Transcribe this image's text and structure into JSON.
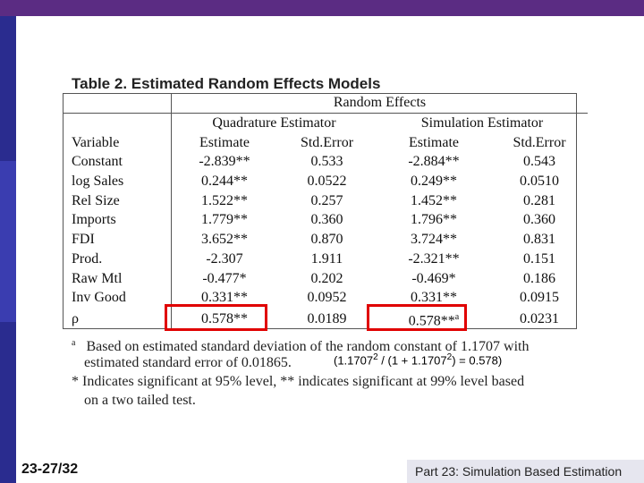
{
  "title": "Table 2.  Estimated Random Effects Models",
  "header": {
    "top": "Random Effects",
    "group1": "Quadrature Estimator",
    "group2": "Simulation Estimator",
    "variable": "Variable",
    "col1": "Estimate",
    "col2": "Std.Error",
    "col3": "Estimate",
    "col4": "Std.Error"
  },
  "rows": [
    {
      "variable": "Constant",
      "q_est": "-2.839**",
      "q_se": "0.533",
      "s_est": "-2.884**",
      "s_se": "0.543"
    },
    {
      "variable": "log Sales",
      "q_est": "0.244**",
      "q_se": "0.0522",
      "s_est": "0.249**",
      "s_se": "0.0510"
    },
    {
      "variable": "Rel Size",
      "q_est": "1.522**",
      "q_se": "0.257",
      "s_est": "1.452**",
      "s_se": "0.281"
    },
    {
      "variable": "Imports",
      "q_est": "1.779**",
      "q_se": "0.360",
      "s_est": "1.796**",
      "s_se": "0.360"
    },
    {
      "variable": "FDI",
      "q_est": "3.652**",
      "q_se": "0.870",
      "s_est": "3.724**",
      "s_se": "0.831"
    },
    {
      "variable": "Prod.",
      "q_est": "-2.307",
      "q_se": "1.911",
      "s_est": "-2.321**",
      "s_se": "0.151"
    },
    {
      "variable": "Raw Mtl",
      "q_est": "-0.477*",
      "q_se": "0.202",
      "s_est": "-0.469*",
      "s_se": "0.186"
    },
    {
      "variable": "Inv Good",
      "q_est": "0.331**",
      "q_se": "0.0952",
      "s_est": "0.331**",
      "s_se": "0.0915"
    },
    {
      "variable": "ρ",
      "q_est": "0.578**",
      "q_se": "0.0189",
      "s_est": "0.578**",
      "s_est_sup": "a",
      "s_se": "0.0231"
    }
  ],
  "notes": {
    "a_marker": "a",
    "a_line1": "Based on estimated standard deviation of the random constant of 1.1707 with",
    "a_line2": "estimated standard error of 0.01865.",
    "calc_pre": "(1.1707",
    "calc_sup1": "2",
    "calc_mid": " / (1 + 1.1707",
    "calc_sup2": "2",
    "calc_post": ") = 0.578)",
    "star_line1": "* Indicates significant at 95% level, ** indicates significant at 99% level based",
    "star_line2": "on a two tailed test."
  },
  "footer": {
    "slide_number": "23-27/32",
    "caption": "Part 23: Simulation Based Estimation"
  },
  "colors": {
    "top_bar": "#5b2c83",
    "left_bar": "#2a2c8f",
    "highlight": "#e00000",
    "footer_box": "#e6e6ef"
  }
}
